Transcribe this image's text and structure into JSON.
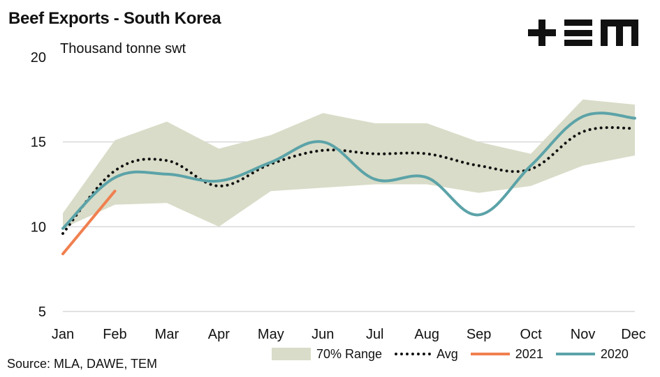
{
  "title": "Beef Exports - South Korea",
  "source": "Source: MLA, DAWE, TEM",
  "logo_icon": "tem-logo-icon",
  "colors": {
    "range": "#d9dcc8",
    "avg": "#111111",
    "y2021": "#f08050",
    "y2020": "#5ba3a8",
    "grid": "#d8d8d8"
  },
  "chart_data": {
    "type": "line",
    "ylabel": "Thousand tonne swt",
    "ylim": [
      5,
      20
    ],
    "yticks": [
      5,
      10,
      15,
      20
    ],
    "grid": true,
    "legend_position": "bottom",
    "categories": [
      "Jan",
      "Feb",
      "Mar",
      "Apr",
      "May",
      "Jun",
      "Jul",
      "Aug",
      "Sep",
      "Oct",
      "Nov",
      "Dec"
    ],
    "range": {
      "name": "70% Range",
      "low": [
        9.9,
        11.3,
        11.4,
        10.0,
        12.1,
        12.3,
        12.5,
        12.5,
        12.0,
        12.4,
        13.6,
        14.2
      ],
      "high": [
        10.8,
        15.1,
        16.2,
        14.6,
        15.4,
        16.7,
        16.1,
        16.1,
        15.0,
        14.3,
        17.5,
        17.2
      ]
    },
    "series": [
      {
        "name": "Avg",
        "style": "dotted",
        "values": [
          9.6,
          13.3,
          13.9,
          12.4,
          13.7,
          14.5,
          14.3,
          14.3,
          13.6,
          13.4,
          15.6,
          15.8
        ]
      },
      {
        "name": "2021",
        "style": "solid",
        "values": [
          8.4,
          12.1,
          null,
          null,
          null,
          null,
          null,
          null,
          null,
          null,
          null,
          null
        ]
      },
      {
        "name": "2020",
        "style": "solid",
        "values": [
          9.9,
          12.9,
          13.1,
          12.7,
          13.8,
          15.0,
          12.8,
          12.9,
          10.7,
          13.6,
          16.5,
          16.4
        ]
      }
    ]
  }
}
